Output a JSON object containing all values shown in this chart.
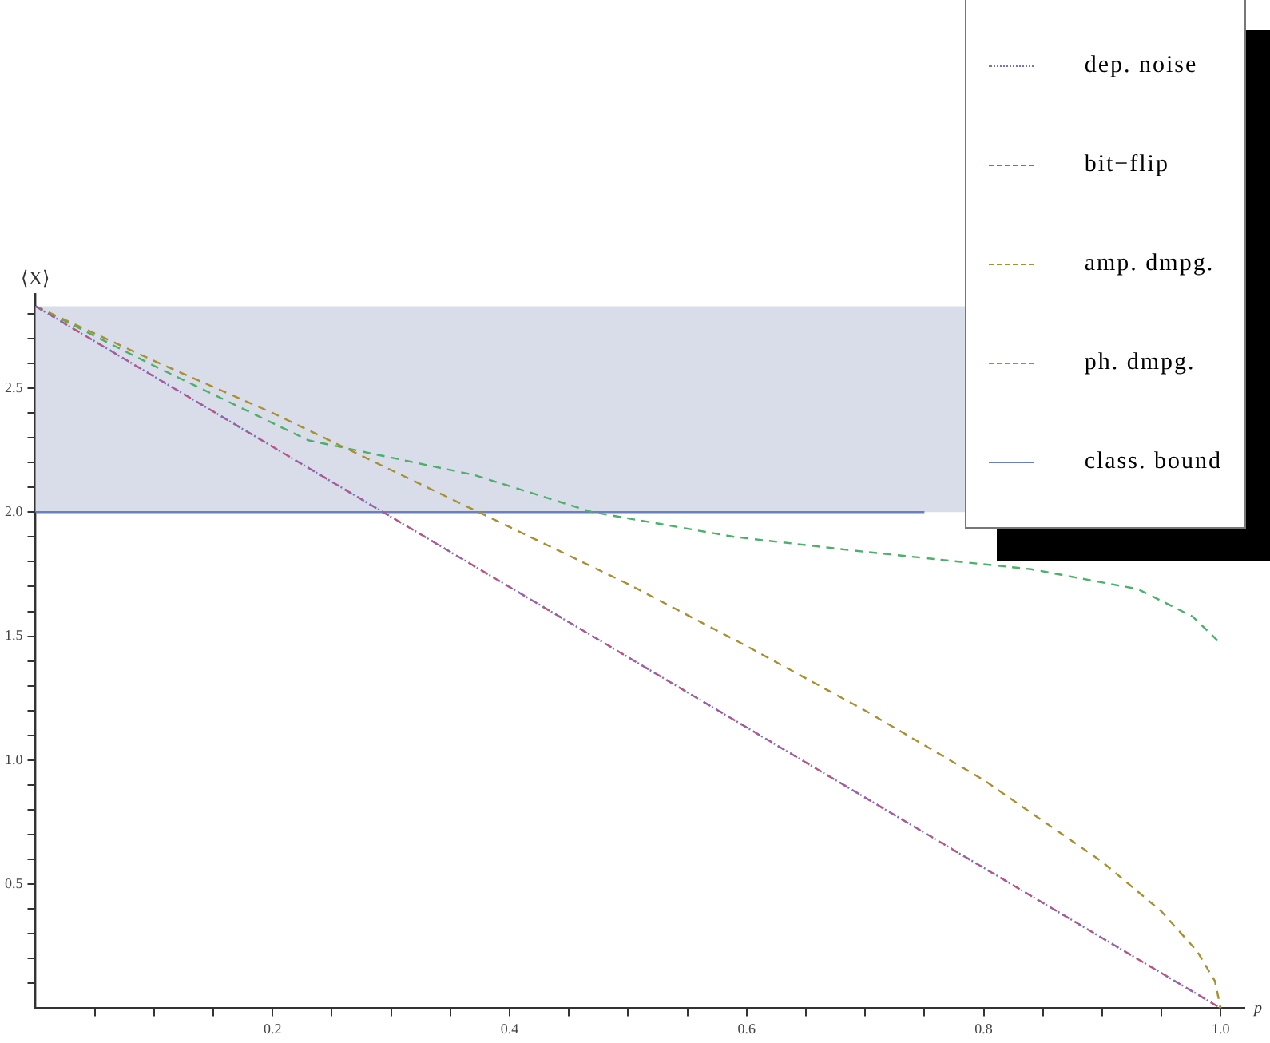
{
  "chart_data": {
    "type": "line",
    "xlabel": "p",
    "ylabel": "⟨X⟩",
    "xlim": [
      0,
      1.02
    ],
    "ylim": [
      0,
      2.88
    ],
    "xticks": [
      {
        "value": 0.05,
        "label": null
      },
      {
        "value": 0.1,
        "label": null
      },
      {
        "value": 0.15,
        "label": null
      },
      {
        "value": 0.2,
        "label": "0.2"
      },
      {
        "value": 0.25,
        "label": null
      },
      {
        "value": 0.3,
        "label": null
      },
      {
        "value": 0.35,
        "label": null
      },
      {
        "value": 0.4,
        "label": "0.4"
      },
      {
        "value": 0.45,
        "label": null
      },
      {
        "value": 0.5,
        "label": null
      },
      {
        "value": 0.55,
        "label": null
      },
      {
        "value": 0.6,
        "label": "0.6"
      },
      {
        "value": 0.65,
        "label": null
      },
      {
        "value": 0.7,
        "label": null
      },
      {
        "value": 0.75,
        "label": null
      },
      {
        "value": 0.8,
        "label": "0.8"
      },
      {
        "value": 0.85,
        "label": null
      },
      {
        "value": 0.9,
        "label": null
      },
      {
        "value": 0.95,
        "label": null
      },
      {
        "value": 1,
        "label": "1.0"
      }
    ],
    "yticks": [
      {
        "value": 0.1,
        "label": null
      },
      {
        "value": 0.2,
        "label": null
      },
      {
        "value": 0.3,
        "label": null
      },
      {
        "value": 0.4,
        "label": null
      },
      {
        "value": 0.5,
        "label": "0.5"
      },
      {
        "value": 0.6,
        "label": null
      },
      {
        "value": 0.7,
        "label": null
      },
      {
        "value": 0.8,
        "label": null
      },
      {
        "value": 0.9,
        "label": null
      },
      {
        "value": 1,
        "label": "1.0"
      },
      {
        "value": 1.1,
        "label": null
      },
      {
        "value": 1.2,
        "label": null
      },
      {
        "value": 1.3,
        "label": null
      },
      {
        "value": 1.4,
        "label": null
      },
      {
        "value": 1.5,
        "label": "1.5"
      },
      {
        "value": 1.6,
        "label": null
      },
      {
        "value": 1.7,
        "label": null
      },
      {
        "value": 1.8,
        "label": null
      },
      {
        "value": 1.9,
        "label": null
      },
      {
        "value": 2,
        "label": "2.0"
      },
      {
        "value": 2.1,
        "label": null
      },
      {
        "value": 2.2,
        "label": null
      },
      {
        "value": 2.3,
        "label": null
      },
      {
        "value": 2.4,
        "label": null
      },
      {
        "value": 2.5,
        "label": "2.5"
      },
      {
        "value": 2.6,
        "label": null
      },
      {
        "value": 2.7,
        "label": null
      },
      {
        "value": 2.8,
        "label": null
      }
    ],
    "grid": false,
    "legend": "top right",
    "marker": "none",
    "bands": [
      {
        "axis": "y",
        "from": 2,
        "to": 2.83,
        "color": "#d8dde9"
      }
    ],
    "series": [
      {
        "name": "dep. noise",
        "color": "#7b6fc7",
        "line_style": "dotted",
        "x": [
          0,
          1
        ],
        "values": [
          2.83,
          0
        ]
      },
      {
        "name": "bit−flip",
        "color": "#c0507a",
        "line_style": "dashed",
        "x": [
          0,
          1
        ],
        "values": [
          2.83,
          0
        ]
      },
      {
        "name": "amp. dmpg.",
        "color": "#a89030",
        "line_style": "dashed",
        "x": [
          0,
          0.1,
          0.2,
          0.3,
          0.4,
          0.5,
          0.6,
          0.7,
          0.8,
          0.9,
          0.95,
          0.98,
          0.995,
          1
        ],
        "values": [
          2.83,
          2.61,
          2.4,
          2.17,
          1.94,
          1.71,
          1.46,
          1.2,
          0.92,
          0.59,
          0.39,
          0.23,
          0.11,
          0
        ]
      },
      {
        "name": "ph. dmpg.",
        "color": "#4caf6a",
        "line_style": "dashed",
        "x": [
          0,
          0.1,
          0.23,
          0.37,
          0.47,
          0.59,
          0.7,
          0.84,
          0.93,
          0.976,
          1
        ],
        "values": [
          2.83,
          2.59,
          2.29,
          2.15,
          2,
          1.9,
          1.84,
          1.77,
          1.69,
          1.58,
          1.47
        ]
      },
      {
        "name": "class. bound",
        "color": "#6a7fbf",
        "line_style": "solid",
        "x": [
          0,
          0.75
        ],
        "values": [
          2,
          2
        ]
      }
    ]
  }
}
